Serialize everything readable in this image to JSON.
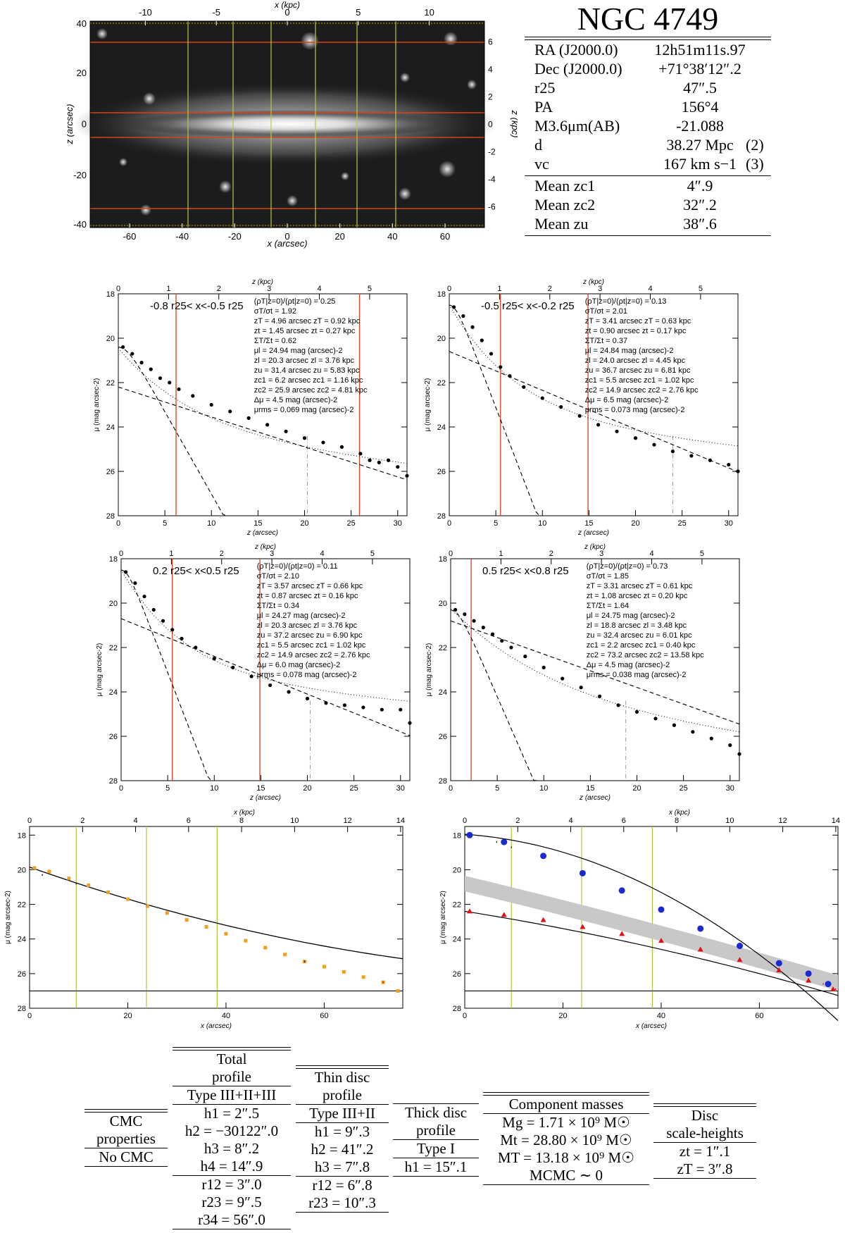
{
  "image_panel": {
    "top_axis_label": "x (kpc)",
    "top_ticks": [
      "-10",
      "-5",
      "0",
      "5",
      "10"
    ],
    "bottom_axis_label": "x (arcsec)",
    "bottom_ticks": [
      "-60",
      "-40",
      "-20",
      "0",
      "20",
      "40",
      "60"
    ],
    "left_axis_label": "z (arcsec)",
    "left_ticks": [
      "40",
      "20",
      "0",
      "-20",
      "-40"
    ],
    "right_axis_label": "z (kpc)",
    "right_ticks": [
      "6",
      "4",
      "2",
      "0",
      "-2",
      "-4",
      "-6"
    ]
  },
  "info": {
    "title": "NGC 4749",
    "rows": [
      {
        "label": "RA (J2000.0)",
        "value": "12h51m11s.97",
        "ref": ""
      },
      {
        "label": "Dec (J2000.0)",
        "value": "+71°38′12″.2",
        "ref": ""
      },
      {
        "label": "r25",
        "value": "47″.5",
        "ref": ""
      },
      {
        "label": "PA",
        "value": "156°4",
        "ref": ""
      },
      {
        "label": "M3.6μm(AB)",
        "value": "-21.088",
        "ref": ""
      },
      {
        "label": "d",
        "value": "38.27 Mpc",
        "ref": "(2)"
      },
      {
        "label": "vc",
        "value": "167 km s−1",
        "ref": "(3)"
      }
    ],
    "rows2": [
      {
        "label": "Mean zc1",
        "value": "4″.9"
      },
      {
        "label": "Mean zc2",
        "value": "32″.2"
      },
      {
        "label": "Mean zu",
        "value": "38″.6"
      }
    ]
  },
  "profiles": {
    "top_axis_label": "z (kpc)",
    "bottom_axis_label": "z (arcsec)",
    "y_axis_label": "μ (mag arcsec-2)",
    "y_ticks": [
      "18",
      "20",
      "22",
      "24",
      "26",
      "28"
    ],
    "x_ticks": [
      "0",
      "5",
      "10",
      "15",
      "20",
      "25",
      "30"
    ],
    "kpc_ticks": [
      "0",
      "1",
      "2",
      "3",
      "4",
      "5"
    ],
    "panels": [
      {
        "range": "-0.8 r25< x<-0.5 r25",
        "stats": [
          "(ρT|z=0)/(ρt|z=0) = 0.25",
          "σT/σt = 1.92",
          "zT = 4.96 arcsec     zT = 0.92 kpc",
          "zt = 1.45 arcsec     zt = 0.27 kpc",
          "ΣT/Σt = 0.62",
          "μl = 24.94 mag (arcsec)-2",
          "zl = 20.3 arcsec     zl = 3.76 kpc",
          "zu = 31.4 arcsec     zu = 5.83 kpc",
          "zc1 = 6.2 arcsec     zc1 = 1.16 kpc",
          "zc2 = 25.9 arcsec     zc2 = 4.81 kpc",
          "Δμ = 4.5 mag (arcsec)-2",
          "μrms = 0.069 mag (arcsec)-2"
        ]
      },
      {
        "range": "-0.5 r25< x<-0.2 r25",
        "stats": [
          "(ρT|z=0)/(ρt|z=0) = 0.13",
          "σT/σt = 2.01",
          "zT = 3.41 arcsec     zT = 0.63 kpc",
          "zt = 0.90 arcsec     zt = 0.17 kpc",
          "ΣT/Σt = 0.37",
          "μl = 24.84 mag (arcsec)-2",
          "zl = 24.0 arcsec     zl = 4.45 kpc",
          "zu = 36.7 arcsec     zu = 6.81 kpc",
          "zc1 = 5.5 arcsec     zc1 = 1.02 kpc",
          "zc2 = 14.9 arcsec     zc2 = 2.76 kpc",
          "Δμ = 6.5 mag (arcsec)-2",
          "μrms = 0.073 mag (arcsec)-2"
        ]
      },
      {
        "range": "0.2 r25< x<0.5 r25",
        "stats": [
          "(ρT|z=0)/(ρt|z=0) = 0.11",
          "σT/σt = 2.10",
          "zT = 3.57 arcsec     zT = 0.66 kpc",
          "zt = 0.87 arcsec     zt = 0.16 kpc",
          "ΣT/Σt = 0.34",
          "μl = 24.27 mag (arcsec)-2",
          "zl = 20.3 arcsec     zl = 3.76 kpc",
          "zu = 37.2 arcsec     zu = 6.90 kpc",
          "zc1 = 5.5 arcsec     zc1 = 1.02 kpc",
          "zc2 = 14.9 arcsec     zc2 = 2.76 kpc",
          "Δμ = 6.0 mag (arcsec)-2",
          "μrms = 0.078 mag (arcsec)-2"
        ]
      },
      {
        "range": "0.5 r25< x<0.8 r25",
        "stats": [
          "(ρT|z=0)/(ρt|z=0) = 0.73",
          "σT/σt = 1.85",
          "zT = 3.31 arcsec     zT = 0.61 kpc",
          "zt = 1.08 arcsec     zt = 0.20 kpc",
          "ΣT/Σt = 1.64",
          "μl = 24.75 mag (arcsec)-2",
          "zl = 18.8 arcsec     zl = 3.48 kpc",
          "zu = 32.4 arcsec     zu = 6.01 kpc",
          "zc1 = 2.2 arcsec     zc1 = 0.40 kpc",
          "zc2 = 73.2 arcsec     zc2 = 13.58 kpc",
          "Δμ = 4.5 mag (arcsec)-2",
          "μrms = 0.038 mag (arcsec)-2"
        ]
      }
    ]
  },
  "radial": {
    "top_axis_label": "x (kpc)",
    "bottom_axis_label": "x (arcsec)",
    "y_axis_label": "μ (mag arcsec-2)",
    "y_ticks": [
      "18",
      "20",
      "22",
      "24",
      "26",
      "28"
    ],
    "x_ticks": [
      "0",
      "20",
      "40",
      "60"
    ],
    "kpc_ticks": [
      "0",
      "2",
      "4",
      "6",
      "8",
      "10",
      "12",
      "14"
    ]
  },
  "tables": {
    "cmc": {
      "head": [
        "CMC",
        "properties"
      ],
      "rows": [
        "No CMC"
      ]
    },
    "total": {
      "head": [
        "Total",
        "profile",
        "Type III+II+III"
      ],
      "rows": [
        "h1 = 2″.5",
        "h2 = −30122″.0",
        "h3 = 8″.2",
        "h4 = 14″.9"
      ],
      "rows2": [
        "r12 = 3″.0",
        "r23 = 9″.5",
        "r34 = 56″.0"
      ]
    },
    "thin": {
      "head": [
        "Thin disc",
        "profile",
        "Type III+II"
      ],
      "rows": [
        "h1 = 9″.3",
        "h2 = 41″.2",
        "h3 = 7″.8"
      ],
      "rows2": [
        "r12 = 6″.8",
        "r23 = 10″.3"
      ]
    },
    "thick": {
      "head": [
        "Thick disc",
        "profile",
        "Type I"
      ],
      "rows": [
        "h1 = 15″.1"
      ]
    },
    "masses": {
      "head": [
        "Component masses"
      ],
      "rows": [
        "Mg = 1.71 × 10⁹ M☉",
        "Mt = 28.80 × 10⁹ M☉",
        "MT = 13.18 × 10⁹ M☉",
        "MCMC ∼ 0"
      ]
    },
    "heights": {
      "head": [
        "Disc",
        "scale-heights"
      ],
      "rows": [
        "zt = 1″.1",
        "zT = 3″.8"
      ]
    }
  },
  "chart_data": [
    {
      "type": "scatter",
      "title": "",
      "xlabel": "z (arcsec)",
      "ylabel": "μ (mag arcsec-2)",
      "ylim": [
        28,
        18
      ],
      "xlim": [
        0,
        31
      ],
      "series": [
        {
          "values": [
            [
              0.5,
              20.4
            ],
            [
              1.5,
              20.7
            ],
            [
              2.5,
              21.1
            ],
            [
              3.5,
              21.4
            ],
            [
              4.5,
              21.8
            ],
            [
              5.5,
              22.0
            ],
            [
              6.5,
              22.3
            ],
            [
              8,
              22.6
            ],
            [
              10,
              23.0
            ],
            [
              12,
              23.3
            ],
            [
              14,
              23.6
            ],
            [
              16,
              23.9
            ],
            [
              18,
              24.2
            ],
            [
              20,
              24.5
            ],
            [
              22,
              24.7
            ],
            [
              24,
              24.9
            ],
            [
              26,
              25.2
            ],
            [
              27,
              25.5
            ],
            [
              28,
              25.6
            ],
            [
              29,
              25.5
            ],
            [
              30,
              25.8
            ],
            [
              31,
              26.2
            ]
          ]
        }
      ]
    },
    {
      "type": "scatter",
      "title": "",
      "xlabel": "z (arcsec)",
      "ylabel": "μ (mag arcsec-2)",
      "ylim": [
        28,
        18
      ],
      "xlim": [
        0,
        31
      ],
      "series": [
        {
          "values": [
            [
              0.5,
              18.6
            ],
            [
              1.5,
              19.0
            ],
            [
              2.5,
              19.5
            ],
            [
              3.5,
              20.1
            ],
            [
              4.5,
              20.7
            ],
            [
              5.5,
              21.3
            ],
            [
              6.5,
              21.7
            ],
            [
              8,
              22.2
            ],
            [
              10,
              22.7
            ],
            [
              12,
              23.1
            ],
            [
              14,
              23.5
            ],
            [
              16,
              23.9
            ],
            [
              18,
              24.2
            ],
            [
              20,
              24.5
            ],
            [
              22,
              24.8
            ],
            [
              24,
              25.1
            ],
            [
              26,
              25.3
            ],
            [
              28,
              25.5
            ],
            [
              30,
              25.7
            ],
            [
              31,
              26.0
            ]
          ]
        }
      ]
    },
    {
      "type": "scatter",
      "title": "",
      "xlabel": "z (arcsec)",
      "ylabel": "μ (mag arcsec-2)",
      "ylim": [
        28,
        18
      ],
      "xlim": [
        0,
        31
      ],
      "series": [
        {
          "values": [
            [
              0.5,
              18.6
            ],
            [
              1.5,
              19.1
            ],
            [
              2.5,
              19.7
            ],
            [
              3.5,
              20.3
            ],
            [
              4.5,
              20.8
            ],
            [
              5.5,
              21.2
            ],
            [
              6.5,
              21.6
            ],
            [
              8,
              22.0
            ],
            [
              10,
              22.5
            ],
            [
              12,
              22.9
            ],
            [
              14,
              23.3
            ],
            [
              16,
              23.7
            ],
            [
              18,
              24.0
            ],
            [
              20,
              24.3
            ],
            [
              22,
              24.5
            ],
            [
              24,
              24.6
            ],
            [
              26,
              24.7
            ],
            [
              28,
              24.8
            ],
            [
              30,
              24.8
            ],
            [
              31,
              25.4
            ]
          ]
        }
      ]
    },
    {
      "type": "scatter",
      "title": "",
      "xlabel": "z (arcsec)",
      "ylabel": "μ (mag arcsec-2)",
      "ylim": [
        28,
        18
      ],
      "xlim": [
        0,
        31
      ],
      "series": [
        {
          "values": [
            [
              0.5,
              20.3
            ],
            [
              1.5,
              20.5
            ],
            [
              2.5,
              20.8
            ],
            [
              3.5,
              21.1
            ],
            [
              4.5,
              21.4
            ],
            [
              5.5,
              21.7
            ],
            [
              6.5,
              22.0
            ],
            [
              8,
              22.4
            ],
            [
              10,
              22.9
            ],
            [
              12,
              23.4
            ],
            [
              14,
              23.8
            ],
            [
              16,
              24.2
            ],
            [
              18,
              24.6
            ],
            [
              20,
              24.9
            ],
            [
              22,
              25.2
            ],
            [
              24,
              25.5
            ],
            [
              26,
              25.8
            ],
            [
              28,
              26.1
            ],
            [
              30,
              26.4
            ],
            [
              31,
              26.8
            ]
          ]
        }
      ]
    },
    {
      "type": "scatter",
      "title": "",
      "xlabel": "x (arcsec)",
      "ylabel": "μ (mag arcsec-2)",
      "ylim": [
        28,
        18
      ],
      "xlim": [
        0,
        76
      ],
      "series": [
        {
          "values": [
            [
              1,
              19.9
            ],
            [
              4,
              20.1
            ],
            [
              8,
              20.5
            ],
            [
              12,
              20.9
            ],
            [
              16,
              21.3
            ],
            [
              20,
              21.7
            ],
            [
              24,
              22.1
            ],
            [
              28,
              22.5
            ],
            [
              32,
              22.9
            ],
            [
              36,
              23.3
            ],
            [
              40,
              23.7
            ],
            [
              44,
              24.1
            ],
            [
              48,
              24.5
            ],
            [
              52,
              24.9
            ],
            [
              56,
              25.3
            ],
            [
              60,
              25.6
            ],
            [
              64,
              25.9
            ],
            [
              68,
              26.2
            ],
            [
              72,
              26.5
            ],
            [
              75,
              27.0
            ]
          ]
        }
      ]
    },
    {
      "type": "scatter",
      "title": "",
      "xlabel": "x (arcsec)",
      "ylabel": "μ (mag arcsec-2)",
      "ylim": [
        28,
        18
      ],
      "xlim": [
        0,
        76
      ],
      "series": [
        {
          "values": [
            [
              1,
              18.0
            ],
            [
              8,
              18.4
            ],
            [
              16,
              19.2
            ],
            [
              24,
              20.2
            ],
            [
              32,
              21.2
            ],
            [
              40,
              22.3
            ],
            [
              48,
              23.4
            ],
            [
              56,
              24.4
            ],
            [
              64,
              25.4
            ],
            [
              70,
              26.0
            ],
            [
              74,
              26.6
            ]
          ]
        },
        {
          "values": [
            [
              1,
              22.4
            ],
            [
              8,
              22.6
            ],
            [
              16,
              22.9
            ],
            [
              24,
              23.3
            ],
            [
              32,
              23.7
            ],
            [
              40,
              24.1
            ],
            [
              48,
              24.6
            ],
            [
              56,
              25.2
            ],
            [
              64,
              25.8
            ],
            [
              70,
              26.4
            ],
            [
              75,
              26.9
            ]
          ]
        }
      ]
    }
  ]
}
